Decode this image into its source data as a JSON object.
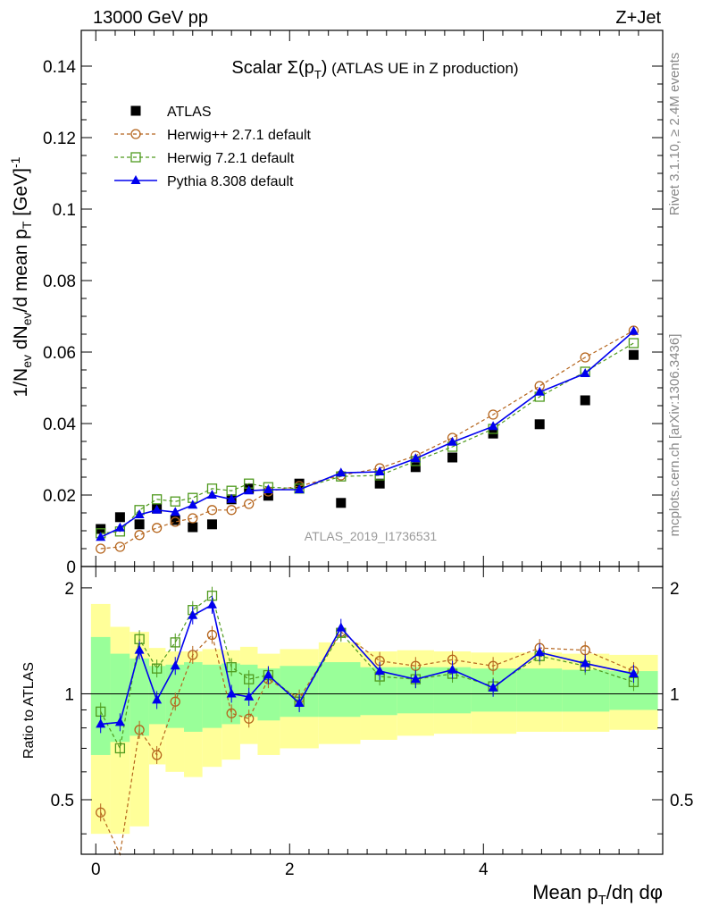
{
  "header": {
    "left": "13000 GeV pp",
    "right": "Z+Jet"
  },
  "side_labels": {
    "rivet": "Rivet 3.1.10, ≥ 2.4M events",
    "mcplots": "mcplots.cern.ch [arXiv:1306.3436]"
  },
  "watermark": "ATLAS_2019_I1736531",
  "colors": {
    "atlas": "#000000",
    "herwigpp": "#b5651d",
    "herwig7": "#4f9a1e",
    "pythia": "#0000ee",
    "band_yellow": "#ffff99",
    "band_green": "#99ff99"
  },
  "chart_data": [
    {
      "type": "scatter",
      "title": "Scalar Σ(pT) (ATLAS UE in Z production)",
      "ylabel": "1/Nev dNev/d mean pT [GeV]^-1",
      "xlim": [
        -0.15,
        5.85
      ],
      "ylim": [
        0,
        0.15
      ],
      "yticks": [
        0,
        0.02,
        0.04,
        0.06,
        0.08,
        0.1,
        0.12,
        0.14
      ],
      "ytick_labels": [
        "0",
        "0.02",
        "0.04",
        "0.06",
        "0.08",
        "0.1",
        "0.12",
        "0.14"
      ],
      "legend_position": "top-left",
      "x": [
        0.05,
        0.25,
        0.45,
        0.63,
        0.82,
        1.0,
        1.2,
        1.4,
        1.58,
        1.78,
        2.1,
        2.53,
        2.93,
        3.3,
        3.68,
        4.1,
        4.58,
        5.05,
        5.55
      ],
      "series": [
        {
          "name": "ATLAS",
          "marker": "filled-square",
          "values": [
            0.0105,
            0.0138,
            0.0118,
            0.0162,
            0.013,
            0.011,
            0.0118,
            0.0188,
            0.0218,
            0.0198,
            0.0232,
            0.0178,
            0.0232,
            0.0278,
            0.0305,
            0.0372,
            0.0398,
            0.0465,
            0.0592
          ]
        },
        {
          "name": "Herwig++ 2.7.1 default",
          "marker": "open-circle",
          "values": [
            0.005,
            0.0055,
            0.0088,
            0.0108,
            0.0125,
            0.0135,
            0.0158,
            0.0158,
            0.0175,
            0.021,
            0.0225,
            0.0255,
            0.0275,
            0.031,
            0.036,
            0.0425,
            0.0505,
            0.0585,
            0.066
          ]
        },
        {
          "name": "Herwig 7.2.1 default",
          "marker": "open-square",
          "values": [
            0.0093,
            0.0098,
            0.0158,
            0.0188,
            0.0182,
            0.0192,
            0.0218,
            0.0212,
            0.0232,
            0.0222,
            0.0218,
            0.0252,
            0.0255,
            0.0295,
            0.0335,
            0.0385,
            0.0475,
            0.0545,
            0.0625
          ]
        },
        {
          "name": "Pythia 8.308 default",
          "marker": "filled-triangle",
          "values": [
            0.0082,
            0.0108,
            0.0145,
            0.0158,
            0.0152,
            0.0172,
            0.02,
            0.0188,
            0.0212,
            0.0215,
            0.0215,
            0.0262,
            0.0265,
            0.0302,
            0.0348,
            0.0392,
            0.0488,
            0.054,
            0.0658
          ]
        }
      ]
    },
    {
      "type": "line",
      "xlabel": "Mean pT/dη dφ",
      "ylabel": "Ratio to ATLAS",
      "xlim": [
        -0.15,
        5.85
      ],
      "ylim": [
        0.35,
        2.3
      ],
      "xticks": [
        0,
        2,
        4
      ],
      "xtick_labels": [
        "0",
        "2",
        "4"
      ],
      "yticks": [
        0.5,
        1,
        2
      ],
      "ytick_labels": [
        "0.5",
        "1",
        "2"
      ],
      "x": [
        0.05,
        0.25,
        0.45,
        0.63,
        0.82,
        1.0,
        1.2,
        1.4,
        1.58,
        1.78,
        2.1,
        2.53,
        2.93,
        3.3,
        3.68,
        4.1,
        4.58,
        5.05,
        5.55
      ],
      "bin_edges": [
        -0.05,
        0.15,
        0.35,
        0.55,
        0.72,
        0.91,
        1.1,
        1.3,
        1.49,
        1.67,
        1.9,
        2.3,
        2.73,
        3.11,
        3.49,
        3.87,
        4.34,
        4.81,
        5.3,
        5.8
      ],
      "bands": {
        "yellow": [
          [
            0.4,
            1.8
          ],
          [
            0.4,
            1.55
          ],
          [
            0.42,
            1.5
          ],
          [
            0.63,
            1.35
          ],
          [
            0.6,
            1.32
          ],
          [
            0.58,
            1.32
          ],
          [
            0.62,
            1.34
          ],
          [
            0.65,
            1.33
          ],
          [
            0.72,
            1.36
          ],
          [
            0.67,
            1.3
          ],
          [
            0.7,
            1.34
          ],
          [
            0.72,
            1.4
          ],
          [
            0.74,
            1.32
          ],
          [
            0.76,
            1.33
          ],
          [
            0.77,
            1.32
          ],
          [
            0.77,
            1.31
          ],
          [
            0.78,
            1.31
          ],
          [
            0.78,
            1.3
          ],
          [
            0.79,
            1.29
          ]
        ],
        "green": [
          [
            0.67,
            1.45
          ],
          [
            0.73,
            1.3
          ],
          [
            0.76,
            1.26
          ],
          [
            0.82,
            1.2
          ],
          [
            0.8,
            1.21
          ],
          [
            0.78,
            1.23
          ],
          [
            0.8,
            1.21
          ],
          [
            0.82,
            1.22
          ],
          [
            0.86,
            1.21
          ],
          [
            0.84,
            1.18
          ],
          [
            0.86,
            1.2
          ],
          [
            0.86,
            1.23
          ],
          [
            0.87,
            1.19
          ],
          [
            0.88,
            1.19
          ],
          [
            0.88,
            1.19
          ],
          [
            0.89,
            1.18
          ],
          [
            0.89,
            1.18
          ],
          [
            0.89,
            1.17
          ],
          [
            0.9,
            1.16
          ]
        ]
      },
      "reference_line": 1,
      "series": [
        {
          "name": "Herwig++ 2.7.1 default",
          "marker": "open-circle",
          "values": [
            0.46,
            0.3,
            0.79,
            0.67,
            0.95,
            1.29,
            1.47,
            0.88,
            0.85,
            1.1,
            0.97,
            1.5,
            1.24,
            1.2,
            1.25,
            1.2,
            1.35,
            1.33,
            1.16
          ]
        },
        {
          "name": "Herwig 7.2.1 default",
          "marker": "open-square",
          "values": [
            0.89,
            0.7,
            1.43,
            1.18,
            1.4,
            1.73,
            1.9,
            1.19,
            1.1,
            1.13,
            0.95,
            1.49,
            1.12,
            1.1,
            1.14,
            1.05,
            1.28,
            1.2,
            1.08
          ]
        },
        {
          "name": "Pythia 8.308 default",
          "marker": "filled-triangle",
          "values": [
            0.82,
            0.83,
            1.33,
            0.96,
            1.2,
            1.67,
            1.79,
            1.0,
            0.98,
            1.13,
            0.94,
            1.54,
            1.16,
            1.1,
            1.17,
            1.04,
            1.31,
            1.22,
            1.14
          ]
        }
      ]
    }
  ]
}
